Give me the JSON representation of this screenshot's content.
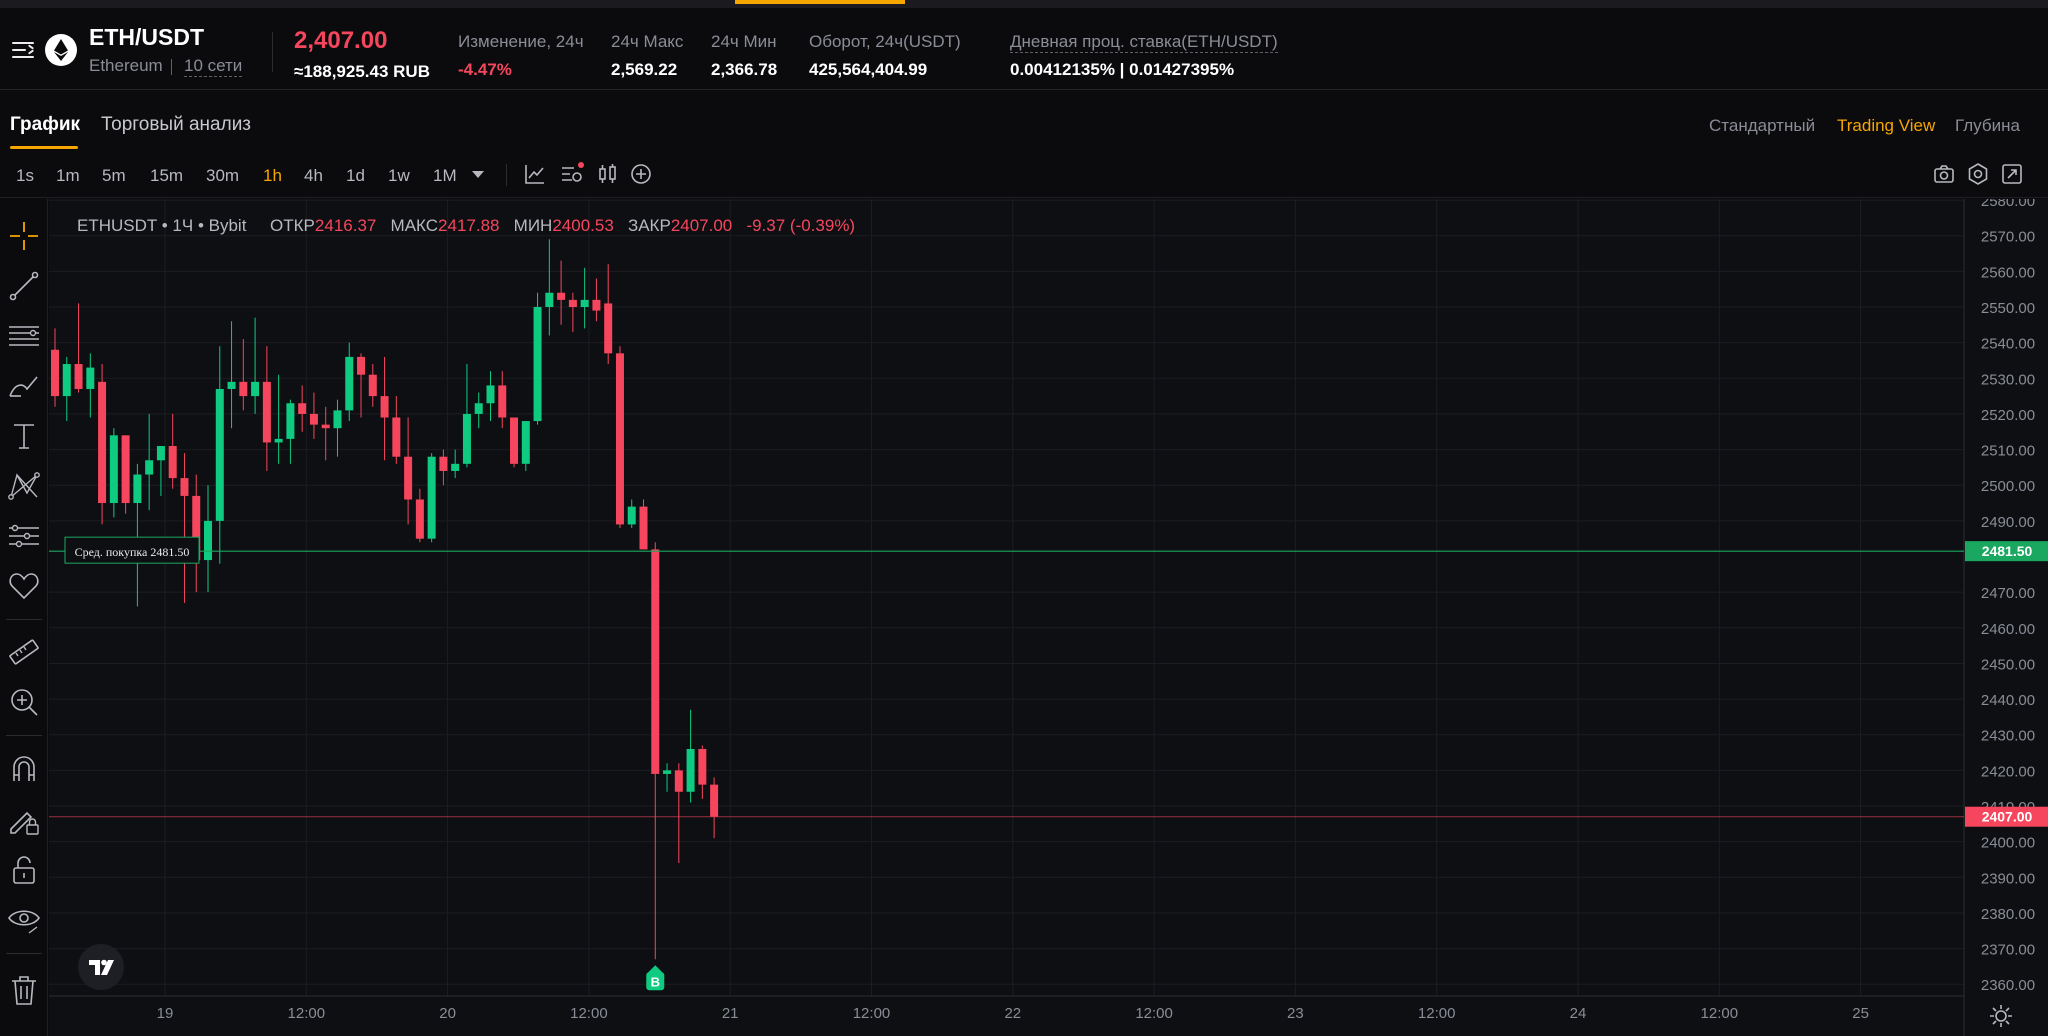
{
  "header": {
    "pair": "ETH/USDT",
    "coin_name": "Ethereum",
    "networks": "10 сети",
    "last_price": "2,407.00",
    "price_rub": "≈188,925.43 RUB",
    "stats": [
      {
        "label": "Изменение, 24ч",
        "value": "-4.47%",
        "negative": true
      },
      {
        "label": "24ч Макс",
        "value": "2,569.22",
        "negative": false
      },
      {
        "label": "24ч Мин",
        "value": "2,366.78",
        "negative": false
      },
      {
        "label": "Оборот, 24ч(USDT)",
        "value": "425,564,404.99",
        "negative": false
      },
      {
        "label": "Дневная проц. ставка(ETH/USDT)",
        "value": "0.00412135% | 0.01427395%",
        "negative": false
      }
    ]
  },
  "tabs": {
    "chart": "График",
    "analysis": "Торговый анализ"
  },
  "views": {
    "standard": "Стандартный",
    "tradingview": "Trading View",
    "depth": "Глубина"
  },
  "timeframes": [
    "1s",
    "1m",
    "5m",
    "15m",
    "30m",
    "1h",
    "4h",
    "1d",
    "1w",
    "1M"
  ],
  "active_timeframe": "1h",
  "legend": {
    "symbol": "ETHUSDT",
    "interval": "1Ч",
    "exchange": "Bybit",
    "open_label": "ОТКР",
    "open": "2416.37",
    "high_label": "МАКС",
    "high": "2417.88",
    "low_label": "МИН",
    "low": "2400.53",
    "close_label": "ЗАКР",
    "close": "2407.00",
    "change": "-9.37 (-0.39%)"
  },
  "avg_buy": {
    "label": "Сред. покупка 2481.50",
    "axis_label": "2481.50",
    "price": 2481.5
  },
  "current_price": {
    "axis_label": "2407.00",
    "price": 2407.0
  },
  "buy_marker": "B",
  "colors": {
    "up": "#0ecb81",
    "down": "#f6465d",
    "accent": "#f7a600",
    "avg_line": "#1aa860"
  },
  "chart_data": {
    "type": "candlestick",
    "y_ticks": [
      "2580.00",
      "2570.00",
      "2560.00",
      "2550.00",
      "2540.00",
      "2530.00",
      "2520.00",
      "2510.00",
      "2500.00",
      "2490.00",
      "2470.00",
      "2460.00",
      "2450.00",
      "2440.00",
      "2430.00",
      "2420.00",
      "2410.00",
      "2400.00",
      "2390.00",
      "2380.00",
      "2370.00",
      "2360.00"
    ],
    "x_ticks": [
      "19",
      "12:00",
      "20",
      "12:00",
      "21",
      "12:00",
      "22",
      "12:00",
      "23",
      "12:00",
      "24",
      "12:00",
      "25"
    ],
    "ylim": [
      2356.7,
      2580.3
    ],
    "candles": [
      {
        "o": 2538,
        "h": 2544,
        "l": 2522,
        "c": 2525
      },
      {
        "o": 2525,
        "h": 2536,
        "l": 2518,
        "c": 2534
      },
      {
        "o": 2534,
        "h": 2551,
        "l": 2526,
        "c": 2527
      },
      {
        "o": 2527,
        "h": 2537,
        "l": 2519,
        "c": 2533
      },
      {
        "o": 2529,
        "h": 2534,
        "l": 2489,
        "c": 2495
      },
      {
        "o": 2495,
        "h": 2516,
        "l": 2491,
        "c": 2514
      },
      {
        "o": 2514,
        "h": 2514,
        "l": 2492,
        "c": 2495
      },
      {
        "o": 2495,
        "h": 2506,
        "l": 2466,
        "c": 2503
      },
      {
        "o": 2503,
        "h": 2520,
        "l": 2493,
        "c": 2507
      },
      {
        "o": 2507,
        "h": 2511,
        "l": 2497,
        "c": 2511
      },
      {
        "o": 2511,
        "h": 2520,
        "l": 2499,
        "c": 2502
      },
      {
        "o": 2502,
        "h": 2509,
        "l": 2467,
        "c": 2497
      },
      {
        "o": 2497,
        "h": 2503,
        "l": 2470,
        "c": 2479
      },
      {
        "o": 2479,
        "h": 2500,
        "l": 2470,
        "c": 2490
      },
      {
        "o": 2490,
        "h": 2539,
        "l": 2478,
        "c": 2527
      },
      {
        "o": 2527,
        "h": 2546,
        "l": 2516,
        "c": 2529
      },
      {
        "o": 2529,
        "h": 2541,
        "l": 2521,
        "c": 2525
      },
      {
        "o": 2525,
        "h": 2547,
        "l": 2520,
        "c": 2529
      },
      {
        "o": 2529,
        "h": 2539,
        "l": 2504,
        "c": 2512
      },
      {
        "o": 2512,
        "h": 2531,
        "l": 2506,
        "c": 2513
      },
      {
        "o": 2513,
        "h": 2524,
        "l": 2506,
        "c": 2523
      },
      {
        "o": 2523,
        "h": 2528,
        "l": 2515,
        "c": 2520
      },
      {
        "o": 2520,
        "h": 2526,
        "l": 2513,
        "c": 2517
      },
      {
        "o": 2517,
        "h": 2522,
        "l": 2507,
        "c": 2516
      },
      {
        "o": 2516,
        "h": 2524,
        "l": 2508,
        "c": 2521
      },
      {
        "o": 2521,
        "h": 2540,
        "l": 2518,
        "c": 2536
      },
      {
        "o": 2536,
        "h": 2537,
        "l": 2519,
        "c": 2531
      },
      {
        "o": 2531,
        "h": 2534,
        "l": 2522,
        "c": 2525
      },
      {
        "o": 2525,
        "h": 2536,
        "l": 2507,
        "c": 2519
      },
      {
        "o": 2519,
        "h": 2525,
        "l": 2506,
        "c": 2508
      },
      {
        "o": 2508,
        "h": 2519,
        "l": 2489,
        "c": 2496
      },
      {
        "o": 2496,
        "h": 2499,
        "l": 2484,
        "c": 2485
      },
      {
        "o": 2485,
        "h": 2509,
        "l": 2484,
        "c": 2508
      },
      {
        "o": 2508,
        "h": 2510,
        "l": 2500,
        "c": 2504
      },
      {
        "o": 2504,
        "h": 2510,
        "l": 2502,
        "c": 2506
      },
      {
        "o": 2506,
        "h": 2534,
        "l": 2505,
        "c": 2520
      },
      {
        "o": 2520,
        "h": 2526,
        "l": 2516,
        "c": 2523
      },
      {
        "o": 2523,
        "h": 2532,
        "l": 2518,
        "c": 2528
      },
      {
        "o": 2528,
        "h": 2532,
        "l": 2516,
        "c": 2519
      },
      {
        "o": 2519,
        "h": 2519,
        "l": 2505,
        "c": 2506
      },
      {
        "o": 2506,
        "h": 2518,
        "l": 2504,
        "c": 2518
      },
      {
        "o": 2518,
        "h": 2554,
        "l": 2517,
        "c": 2550
      },
      {
        "o": 2550,
        "h": 2569,
        "l": 2542,
        "c": 2554
      },
      {
        "o": 2554,
        "h": 2563,
        "l": 2545,
        "c": 2552
      },
      {
        "o": 2552,
        "h": 2554,
        "l": 2543,
        "c": 2550
      },
      {
        "o": 2550,
        "h": 2561,
        "l": 2544,
        "c": 2552
      },
      {
        "o": 2552,
        "h": 2558,
        "l": 2546,
        "c": 2549
      },
      {
        "o": 2551,
        "h": 2562,
        "l": 2534,
        "c": 2537
      },
      {
        "o": 2537,
        "h": 2539,
        "l": 2488,
        "c": 2489
      },
      {
        "o": 2489,
        "h": 2496,
        "l": 2488,
        "c": 2494
      },
      {
        "o": 2494,
        "h": 2496,
        "l": 2482,
        "c": 2482
      },
      {
        "o": 2482,
        "h": 2484,
        "l": 2367,
        "c": 2419
      },
      {
        "o": 2419,
        "h": 2422,
        "l": 2414,
        "c": 2420
      },
      {
        "o": 2420,
        "h": 2422,
        "l": 2394,
        "c": 2414
      },
      {
        "o": 2414,
        "h": 2437,
        "l": 2411,
        "c": 2426
      },
      {
        "o": 2426,
        "h": 2427,
        "l": 2412,
        "c": 2416
      },
      {
        "o": 2416,
        "h": 2418,
        "l": 2401,
        "c": 2407
      }
    ]
  }
}
